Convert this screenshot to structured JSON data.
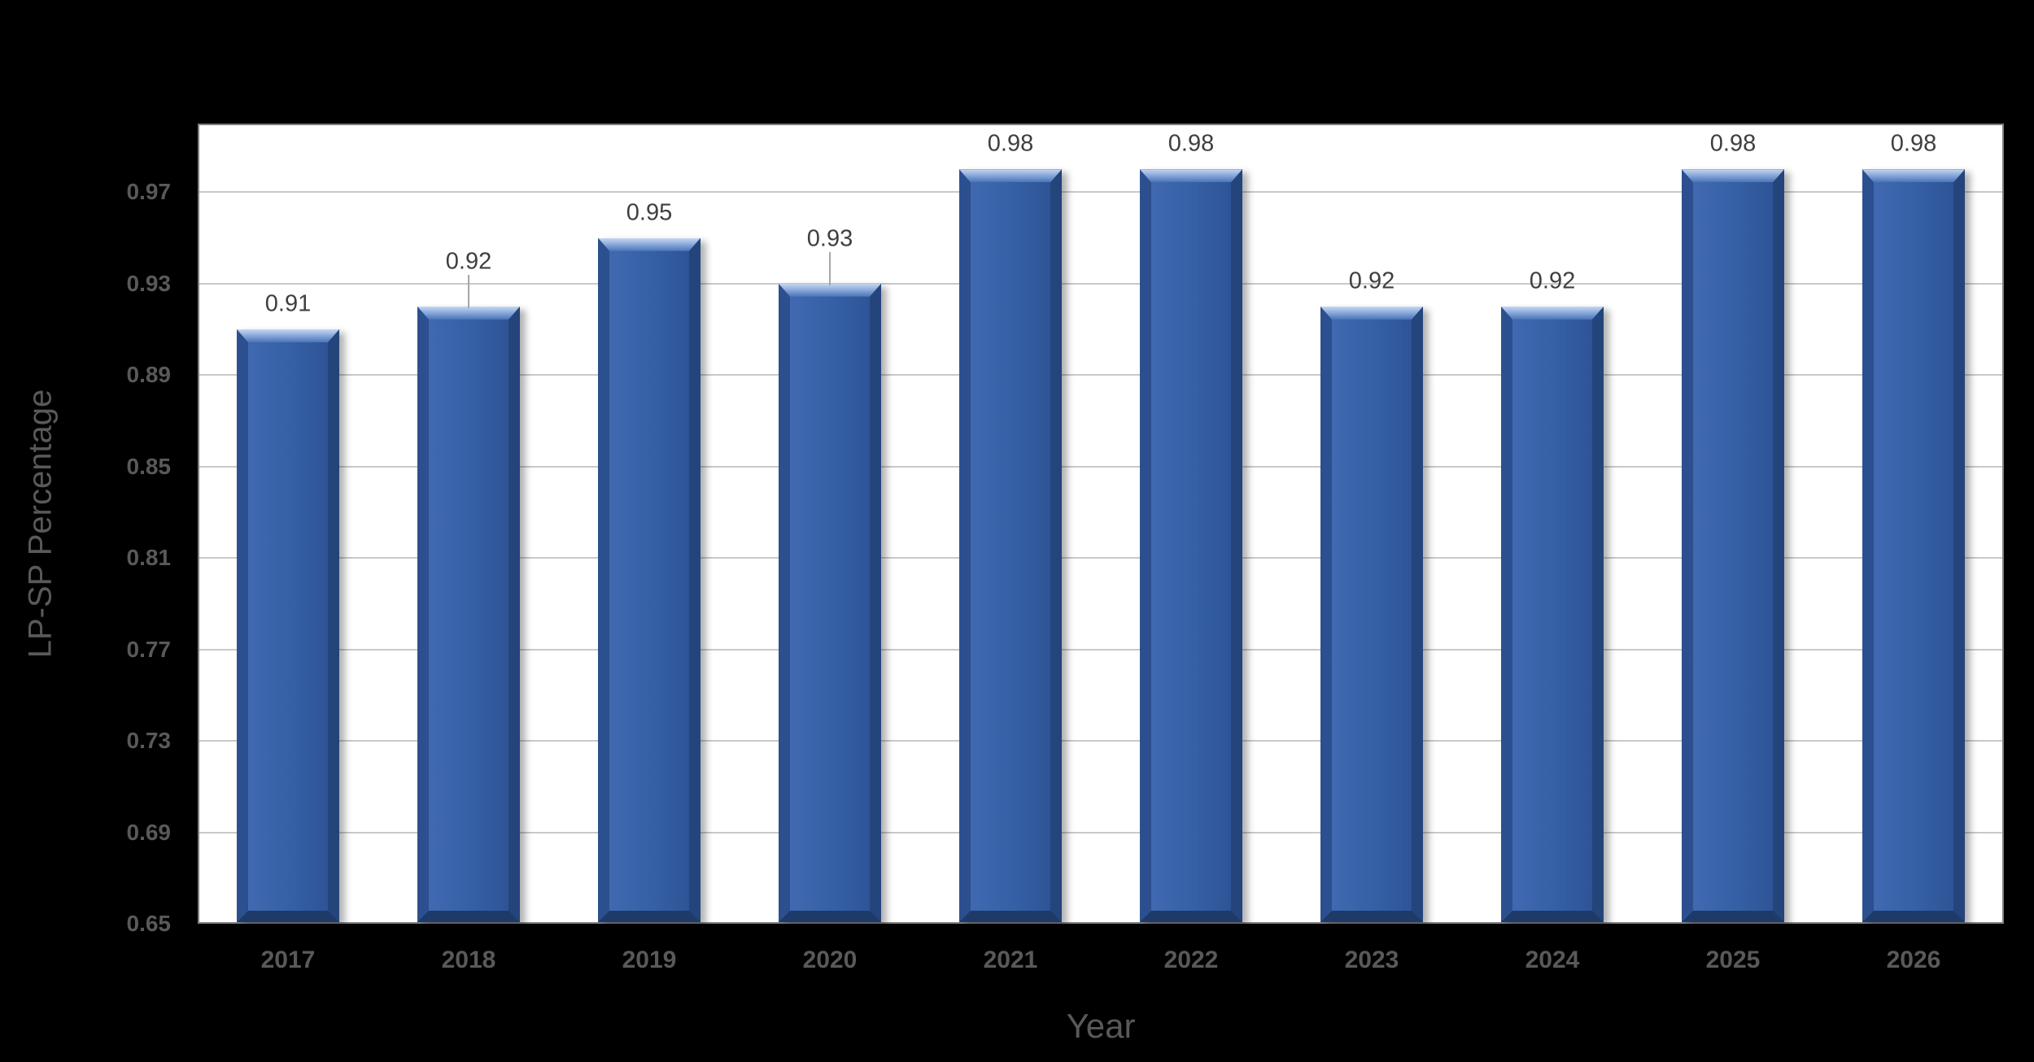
{
  "chart_data": {
    "type": "bar",
    "title": "",
    "xlabel": "Year",
    "ylabel": "LP-SP Percentage",
    "categories": [
      "2017",
      "2018",
      "2019",
      "2020",
      "2021",
      "2022",
      "2023",
      "2024",
      "2025",
      "2026"
    ],
    "values": [
      0.91,
      0.92,
      0.95,
      0.93,
      0.98,
      0.98,
      0.92,
      0.92,
      0.98,
      0.98
    ],
    "data_labels": [
      "0.91",
      "0.92",
      "0.95",
      "0.93",
      "0.98",
      "0.98",
      "0.92",
      "0.92",
      "0.98",
      "0.98"
    ],
    "y_ticks": [
      0.65,
      0.69,
      0.73,
      0.77,
      0.81,
      0.85,
      0.89,
      0.93,
      0.97
    ],
    "y_tick_labels": [
      "0.65",
      "0.69",
      "0.73",
      "0.77",
      "0.81",
      "0.85",
      "0.89",
      "0.93",
      "0.97"
    ],
    "ylim": [
      0.65,
      1.0
    ],
    "grid": true,
    "legend": "none",
    "moved_labels_with_leader_lines": [
      "2018",
      "2020"
    ],
    "colors": {
      "background": "#000000",
      "plot_background": "#FFFFFF",
      "plot_border": "#7F7F7F",
      "gridline": "#C9C9C9",
      "bar_fill": "#3560A5",
      "bar_bevel_top": "#7FA0D4",
      "bar_bevel_left": "#2C508F",
      "bar_bevel_right": "#24457C",
      "bar_bevel_bottom": "#1E3A69",
      "tick_label": "#595959",
      "data_label": "#3F3F3F",
      "axis_title": "#595959",
      "leader_line": "#A6A6A6"
    }
  }
}
